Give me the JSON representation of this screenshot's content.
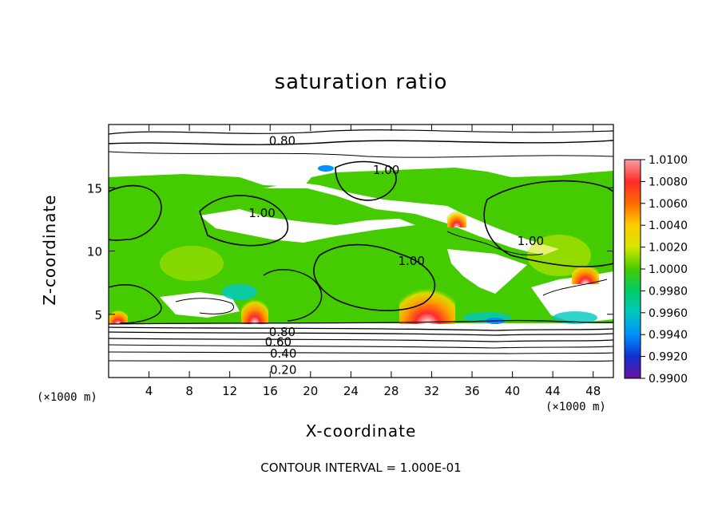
{
  "chart_data": {
    "type": "heatmap",
    "title": "saturation ratio",
    "xlabel": "X-coordinate",
    "ylabel": "Z-coordinate",
    "x_unit": "(×1000 m)",
    "x_unit_right": "(×1000 m)",
    "xlim": [
      0,
      50
    ],
    "ylim": [
      0,
      20
    ],
    "xticks": [
      4,
      8,
      12,
      16,
      20,
      24,
      28,
      32,
      36,
      40,
      44,
      48
    ],
    "yticks": [
      5,
      10,
      15
    ],
    "colorbar": {
      "min": 0.99,
      "max": 1.01,
      "tick_labels": [
        "1.0100",
        "1.0080",
        "1.0060",
        "1.0040",
        "1.0020",
        "1.0000",
        "0.9980",
        "0.9960",
        "0.9940",
        "0.9920",
        "0.9900"
      ],
      "colors": [
        "#f5a0a0",
        "#ff2a2a",
        "#ff6a00",
        "#ffcc00",
        "#d4e600",
        "#44cc00",
        "#00cc66",
        "#00c8c0",
        "#0090ff",
        "#1030d0",
        "#6a10a0"
      ]
    },
    "contour_labels": [
      {
        "text": "0.80",
        "x": 17.2,
        "z": 18.7
      },
      {
        "text": "1.00",
        "x": 27.5,
        "z": 16.4
      },
      {
        "text": "1.00",
        "x": 15.2,
        "z": 13.0
      },
      {
        "text": "1.00",
        "x": 41.8,
        "z": 10.8
      },
      {
        "text": "1.00",
        "x": 30.0,
        "z": 9.2
      },
      {
        "text": "0.80",
        "x": 17.2,
        "z": 3.6
      },
      {
        "text": "0.60",
        "x": 16.8,
        "z": 2.8
      },
      {
        "text": "0.40",
        "x": 17.3,
        "z": 1.9
      },
      {
        "text": "0.20",
        "x": 17.3,
        "z": 0.6
      }
    ],
    "grid": false,
    "legend": "right"
  },
  "footnote": "CONTOUR INTERVAL = 1.000E-01",
  "colors": {
    "fill_main": "#44cc00",
    "fill_warm": "#ff2a2a",
    "fill_cool": "#0090ff",
    "line": "#000000"
  }
}
